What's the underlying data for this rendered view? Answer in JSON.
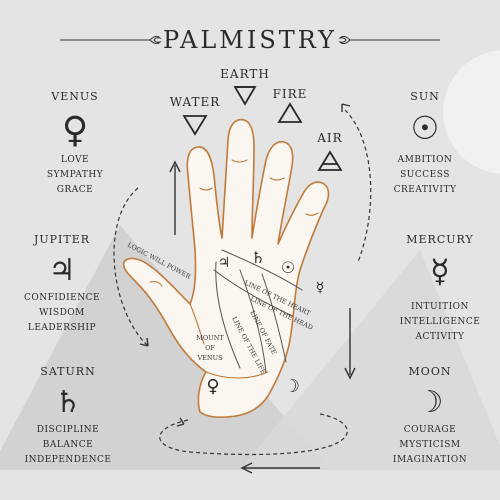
{
  "title": "PALMISTRY",
  "planets": {
    "venus": {
      "name": "VENUS",
      "glyph": "♀",
      "traits": [
        "LOVE",
        "SYMPATHY",
        "GRACE"
      ]
    },
    "jupiter": {
      "name": "JUPITER",
      "glyph": "♃",
      "traits": [
        "CONFIDIENCE",
        "WISDOM",
        "LEADERSHIP"
      ]
    },
    "saturn": {
      "name": "SATURN",
      "glyph": "♄",
      "traits": [
        "DISCIPLINE",
        "BALANCE",
        "INDEPENDENCE"
      ]
    },
    "sun": {
      "name": "SUN",
      "glyph": "☉",
      "traits": [
        "AMBITION",
        "SUCCESS",
        "CREATIVITY"
      ]
    },
    "mercury": {
      "name": "MERCURY",
      "glyph": "☿",
      "traits": [
        "INTUITION",
        "INTELLIGENCE",
        "ACTIVITY"
      ]
    },
    "moon": {
      "name": "MOON",
      "glyph": "☽",
      "traits": [
        "COURAGE",
        "MYSTICISM",
        "IMAGINATION"
      ]
    }
  },
  "elements": {
    "earth": {
      "name": "EARTH",
      "shape": "triangle-down-barred"
    },
    "water": {
      "name": "WATER",
      "shape": "triangle-down"
    },
    "fire": {
      "name": "FIRE",
      "shape": "triangle-up"
    },
    "air": {
      "name": "AIR",
      "shape": "triangle-up-barred"
    }
  },
  "palm_labels": {
    "logic_will_power": "LOGIC WILL POWER",
    "line_of_heart": "LINE OF THE HEART",
    "line_of_head": "LINE OF THE HEAD",
    "line_of_life": "LINE OF THE LIFE",
    "line_of_fate": "LINE OF FATE",
    "mount_line1": "MOUNT",
    "mount_line2": "OF",
    "mount_line3": "VENUS"
  },
  "palm_glyphs": {
    "jupiter": "♃",
    "saturn": "♄",
    "sun": "☉",
    "mercury": "☿",
    "venus": "♀",
    "moon": "☽"
  },
  "colors": {
    "background": "#e4e4e4",
    "hand_outline": "#c27a3a",
    "text": "#2a2a2a"
  }
}
